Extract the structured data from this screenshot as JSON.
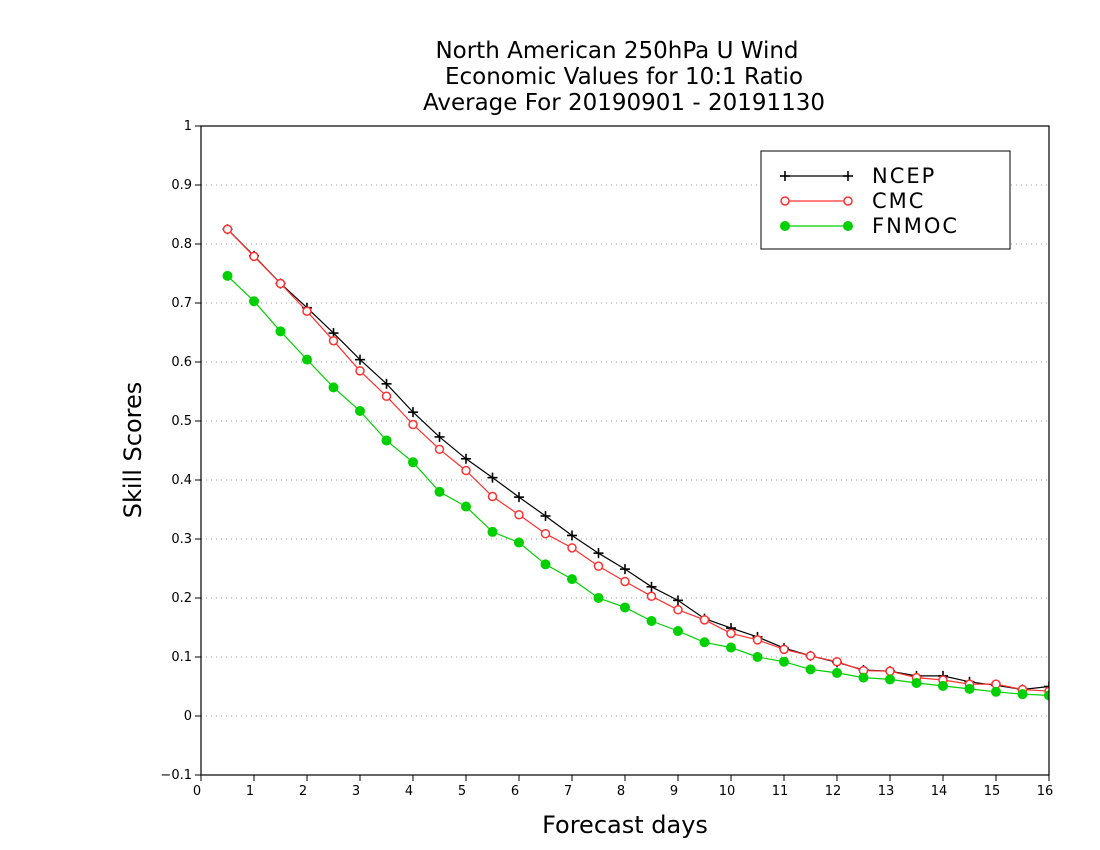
{
  "chart_data": {
    "type": "line",
    "title": [
      "North American 250hPa U Wind",
      "Economic Values for 10:1 Ratio",
      "Average For 20190901 - 20191130"
    ],
    "xlabel": "Forecast days",
    "ylabel": "Skill Scores",
    "xlim": [
      0,
      16
    ],
    "ylim": [
      -0.1,
      1
    ],
    "xticks": [
      "0",
      "1",
      "2",
      "3",
      "4",
      "5",
      "6",
      "7",
      "8",
      "9",
      "10",
      "11",
      "12",
      "13",
      "14",
      "15",
      "16"
    ],
    "yticks": [
      "−0.1",
      "0",
      "0.1",
      "0.2",
      "0.3",
      "0.4",
      "0.5",
      "0.6",
      "0.7",
      "0.8",
      "0.9",
      "1"
    ],
    "grid": "horizontal dotted",
    "legend_position": "top-right",
    "x": [
      0.5,
      1,
      1.5,
      2,
      2.5,
      3,
      3.5,
      4,
      4.5,
      5,
      5.5,
      6,
      6.5,
      7,
      7.5,
      8,
      8.5,
      9,
      9.5,
      10,
      10.5,
      11,
      11.5,
      12,
      12.5,
      13,
      13.5,
      14,
      14.5,
      15,
      15.5,
      16
    ],
    "series": [
      {
        "name": "NCEP",
        "color": "#000000",
        "marker": "plus",
        "values": [
          0.825,
          0.78,
          0.733,
          0.692,
          0.649,
          0.604,
          0.563,
          0.515,
          0.473,
          0.436,
          0.404,
          0.371,
          0.339,
          0.306,
          0.276,
          0.249,
          0.219,
          0.196,
          0.165,
          0.149,
          0.134,
          0.115,
          0.102,
          0.091,
          0.078,
          0.076,
          0.068,
          0.068,
          0.058,
          0.052,
          0.045,
          0.05
        ]
      },
      {
        "name": "CMC",
        "color": "#ff3030",
        "marker": "open-circle",
        "values": [
          0.825,
          0.779,
          0.733,
          0.686,
          0.636,
          0.585,
          0.542,
          0.494,
          0.452,
          0.416,
          0.372,
          0.341,
          0.309,
          0.285,
          0.254,
          0.228,
          0.203,
          0.18,
          0.163,
          0.14,
          0.129,
          0.113,
          0.102,
          0.092,
          0.077,
          0.076,
          0.065,
          0.061,
          0.054,
          0.054,
          0.045,
          0.042
        ]
      },
      {
        "name": "FNMOC",
        "color": "#00d000",
        "marker": "filled-circle",
        "values": [
          0.746,
          0.703,
          0.652,
          0.604,
          0.557,
          0.517,
          0.467,
          0.43,
          0.38,
          0.355,
          0.312,
          0.294,
          0.257,
          0.232,
          0.2,
          0.184,
          0.161,
          0.144,
          0.125,
          0.116,
          0.1,
          0.092,
          0.079,
          0.073,
          0.065,
          0.062,
          0.056,
          0.051,
          0.046,
          0.041,
          0.037,
          0.035
        ]
      }
    ]
  }
}
